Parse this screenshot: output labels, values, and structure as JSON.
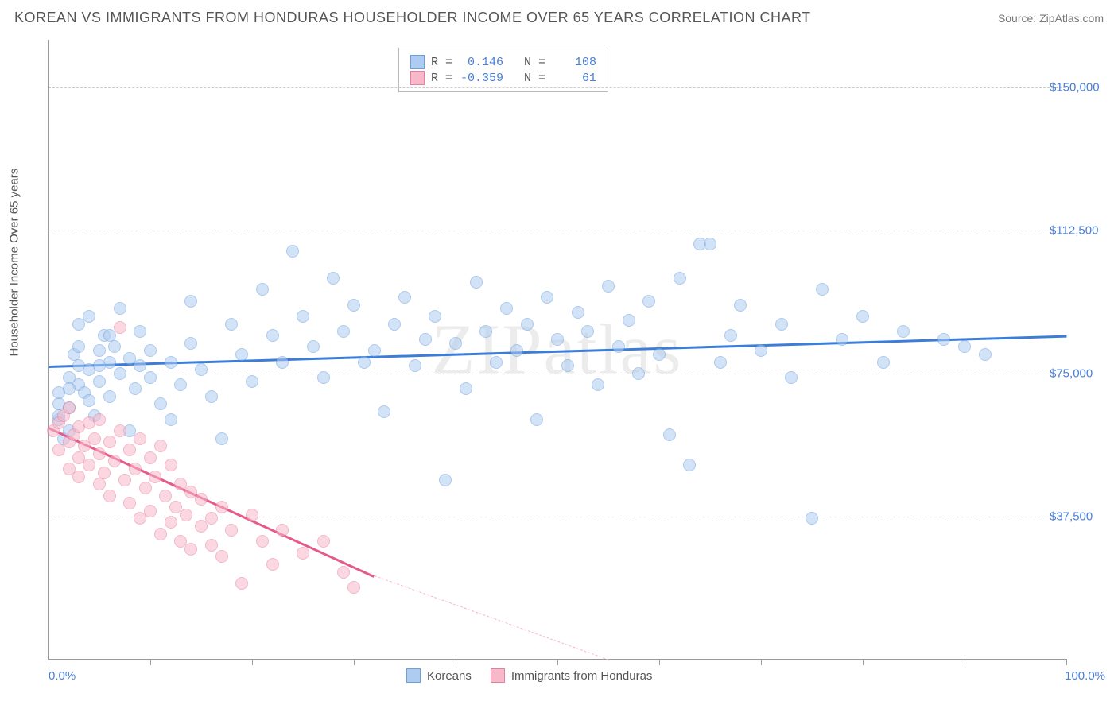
{
  "title": "KOREAN VS IMMIGRANTS FROM HONDURAS HOUSEHOLDER INCOME OVER 65 YEARS CORRELATION CHART",
  "source": "Source: ZipAtlas.com",
  "watermark": "ZIPatlas",
  "chart": {
    "type": "scatter",
    "y_axis_label": "Householder Income Over 65 years",
    "background_color": "#ffffff",
    "grid_color": "#cccccc",
    "axis_color": "#999999",
    "label_fontsize": 15,
    "title_fontsize": 18,
    "xlim": [
      0,
      100
    ],
    "ylim": [
      0,
      162500
    ],
    "x_tick_positions": [
      0,
      10,
      20,
      30,
      40,
      50,
      60,
      70,
      80,
      90,
      100
    ],
    "x_tick_labels": {
      "start": "0.0%",
      "end": "100.0%"
    },
    "y_ticks": [
      {
        "value": 37500,
        "label": "$37,500"
      },
      {
        "value": 75000,
        "label": "$75,000"
      },
      {
        "value": 112500,
        "label": "$112,500"
      },
      {
        "value": 150000,
        "label": "$150,000"
      }
    ],
    "series": [
      {
        "name": "Koreans",
        "fill_color": "#aeccf2",
        "stroke_color": "#6aa0e0",
        "fill_opacity": 0.55,
        "marker_radius": 8,
        "trend": {
          "x1": 0,
          "y1": 77000,
          "x2": 100,
          "y2": 85000,
          "color": "#3b7dd8",
          "width": 2.5
        },
        "R": "0.146",
        "N": "108",
        "points": [
          [
            1,
            63000
          ],
          [
            1,
            67000
          ],
          [
            1,
            70000
          ],
          [
            1.5,
            58000
          ],
          [
            2,
            74000
          ],
          [
            2,
            66000
          ],
          [
            2,
            60000
          ],
          [
            2.5,
            80000
          ],
          [
            3,
            72000
          ],
          [
            3,
            77000
          ],
          [
            3,
            88000
          ],
          [
            3.5,
            70000
          ],
          [
            4,
            76000
          ],
          [
            4,
            90000
          ],
          [
            4.5,
            64000
          ],
          [
            5,
            81000
          ],
          [
            5,
            73000
          ],
          [
            5.5,
            85000
          ],
          [
            6,
            78000
          ],
          [
            6,
            69000
          ],
          [
            6.5,
            82000
          ],
          [
            7,
            75000
          ],
          [
            7,
            92000
          ],
          [
            8,
            60000
          ],
          [
            8,
            79000
          ],
          [
            8.5,
            71000
          ],
          [
            9,
            86000
          ],
          [
            9,
            77000
          ],
          [
            10,
            74000
          ],
          [
            10,
            81000
          ],
          [
            11,
            67000
          ],
          [
            12,
            78000
          ],
          [
            12,
            63000
          ],
          [
            13,
            72000
          ],
          [
            14,
            83000
          ],
          [
            14,
            94000
          ],
          [
            15,
            76000
          ],
          [
            16,
            69000
          ],
          [
            17,
            58000
          ],
          [
            18,
            88000
          ],
          [
            19,
            80000
          ],
          [
            20,
            73000
          ],
          [
            21,
            97000
          ],
          [
            22,
            85000
          ],
          [
            23,
            78000
          ],
          [
            24,
            107000
          ],
          [
            25,
            90000
          ],
          [
            26,
            82000
          ],
          [
            27,
            74000
          ],
          [
            28,
            100000
          ],
          [
            29,
            86000
          ],
          [
            30,
            93000
          ],
          [
            31,
            78000
          ],
          [
            32,
            81000
          ],
          [
            33,
            65000
          ],
          [
            34,
            88000
          ],
          [
            35,
            95000
          ],
          [
            36,
            77000
          ],
          [
            37,
            84000
          ],
          [
            38,
            90000
          ],
          [
            39,
            47000
          ],
          [
            40,
            83000
          ],
          [
            41,
            71000
          ],
          [
            42,
            99000
          ],
          [
            43,
            86000
          ],
          [
            44,
            78000
          ],
          [
            45,
            92000
          ],
          [
            46,
            81000
          ],
          [
            47,
            88000
          ],
          [
            48,
            63000
          ],
          [
            49,
            95000
          ],
          [
            50,
            84000
          ],
          [
            51,
            77000
          ],
          [
            52,
            91000
          ],
          [
            53,
            86000
          ],
          [
            54,
            72000
          ],
          [
            55,
            98000
          ],
          [
            56,
            82000
          ],
          [
            57,
            89000
          ],
          [
            58,
            75000
          ],
          [
            59,
            94000
          ],
          [
            60,
            80000
          ],
          [
            61,
            59000
          ],
          [
            62,
            100000
          ],
          [
            63,
            51000
          ],
          [
            64,
            109000
          ],
          [
            65,
            109000
          ],
          [
            66,
            78000
          ],
          [
            67,
            85000
          ],
          [
            68,
            93000
          ],
          [
            70,
            81000
          ],
          [
            72,
            88000
          ],
          [
            73,
            74000
          ],
          [
            75,
            37000
          ],
          [
            76,
            97000
          ],
          [
            78,
            84000
          ],
          [
            80,
            90000
          ],
          [
            82,
            78000
          ],
          [
            84,
            86000
          ],
          [
            88,
            84000
          ],
          [
            90,
            82000
          ],
          [
            92,
            80000
          ],
          [
            1,
            64000
          ],
          [
            2,
            71000
          ],
          [
            3,
            82000
          ],
          [
            4,
            68000
          ],
          [
            5,
            77000
          ],
          [
            6,
            85000
          ]
        ]
      },
      {
        "name": "Immigrants from Honduras",
        "fill_color": "#f7b8c9",
        "stroke_color": "#e87fa0",
        "fill_opacity": 0.55,
        "marker_radius": 8,
        "trend": {
          "x1": 0,
          "y1": 61000,
          "x2": 32,
          "y2": 22000,
          "color": "#e65a8a",
          "width": 2.5,
          "dash_extend": {
            "x1": 32,
            "y1": 22000,
            "x2": 55,
            "y2": 0,
            "color": "#f7b8c9"
          }
        },
        "R": "-0.359",
        "N": "61",
        "points": [
          [
            0.5,
            60000
          ],
          [
            1,
            62000
          ],
          [
            1,
            55000
          ],
          [
            1.5,
            64000
          ],
          [
            2,
            57000
          ],
          [
            2,
            50000
          ],
          [
            2,
            66000
          ],
          [
            2.5,
            59000
          ],
          [
            3,
            53000
          ],
          [
            3,
            61000
          ],
          [
            3,
            48000
          ],
          [
            3.5,
            56000
          ],
          [
            4,
            62000
          ],
          [
            4,
            51000
          ],
          [
            4.5,
            58000
          ],
          [
            5,
            46000
          ],
          [
            5,
            54000
          ],
          [
            5,
            63000
          ],
          [
            5.5,
            49000
          ],
          [
            6,
            57000
          ],
          [
            6,
            43000
          ],
          [
            6.5,
            52000
          ],
          [
            7,
            60000
          ],
          [
            7,
            87000
          ],
          [
            7.5,
            47000
          ],
          [
            8,
            55000
          ],
          [
            8,
            41000
          ],
          [
            8.5,
            50000
          ],
          [
            9,
            58000
          ],
          [
            9,
            37000
          ],
          [
            9.5,
            45000
          ],
          [
            10,
            53000
          ],
          [
            10,
            39000
          ],
          [
            10.5,
            48000
          ],
          [
            11,
            33000
          ],
          [
            11,
            56000
          ],
          [
            11.5,
            43000
          ],
          [
            12,
            36000
          ],
          [
            12,
            51000
          ],
          [
            12.5,
            40000
          ],
          [
            13,
            46000
          ],
          [
            13,
            31000
          ],
          [
            13.5,
            38000
          ],
          [
            14,
            44000
          ],
          [
            14,
            29000
          ],
          [
            15,
            35000
          ],
          [
            15,
            42000
          ],
          [
            16,
            37000
          ],
          [
            16,
            30000
          ],
          [
            17,
            40000
          ],
          [
            17,
            27000
          ],
          [
            18,
            34000
          ],
          [
            19,
            20000
          ],
          [
            20,
            38000
          ],
          [
            21,
            31000
          ],
          [
            22,
            25000
          ],
          [
            23,
            34000
          ],
          [
            25,
            28000
          ],
          [
            27,
            31000
          ],
          [
            29,
            23000
          ],
          [
            30,
            19000
          ]
        ]
      }
    ],
    "legend_bottom": [
      {
        "label": "Koreans",
        "fill": "#aeccf2",
        "stroke": "#6aa0e0"
      },
      {
        "label": "Immigrants from Honduras",
        "fill": "#f7b8c9",
        "stroke": "#e87fa0"
      }
    ]
  }
}
